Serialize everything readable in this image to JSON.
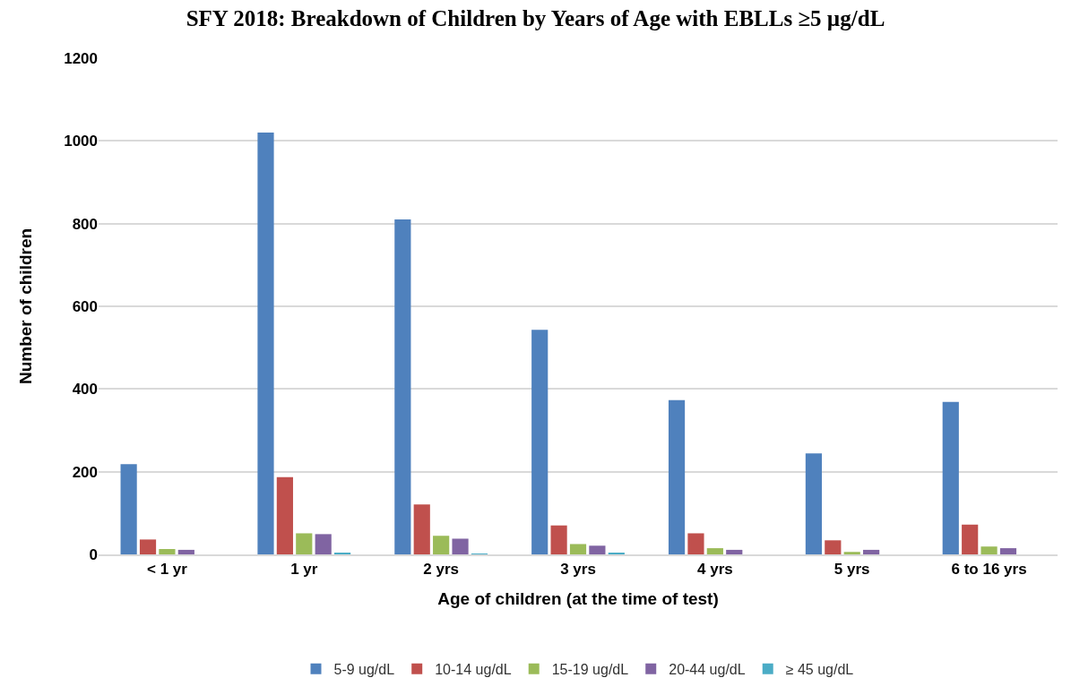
{
  "chart_data": {
    "type": "bar",
    "title": "SFY 2018: Breakdown of Children by Years of Age with EBLLs ≥5 µg/dL",
    "xlabel": "Age of children (at the time of test)",
    "ylabel": "Number of children",
    "categories": [
      "< 1 yr",
      "1 yr",
      "2 yrs",
      "3 yrs",
      "4 yrs",
      "5 yrs",
      "6 to 16 yrs"
    ],
    "series": [
      {
        "name": "5-9 ug/dL",
        "color": "#4f81bd",
        "values": [
          218,
          1020,
          810,
          543,
          373,
          244,
          369
        ]
      },
      {
        "name": "10-14 ug/dL",
        "color": "#c0504d",
        "values": [
          36,
          187,
          121,
          70,
          51,
          34,
          72
        ]
      },
      {
        "name": "15-19 ug/dL",
        "color": "#9bbb59",
        "values": [
          13,
          51,
          45,
          25,
          15,
          6,
          19
        ]
      },
      {
        "name": "20-44 ug/dL",
        "color": "#8064a2",
        "values": [
          11,
          49,
          38,
          21,
          11,
          11,
          15
        ]
      },
      {
        "name": "≥ 45 ug/dL",
        "color": "#4bacc6",
        "values": [
          0,
          4,
          2,
          4,
          0,
          0,
          0
        ]
      }
    ],
    "ylim": [
      0,
      1200
    ],
    "yticks": [
      0,
      200,
      400,
      600,
      800,
      1000,
      1200
    ],
    "grid": "y",
    "legend": "bottom"
  }
}
